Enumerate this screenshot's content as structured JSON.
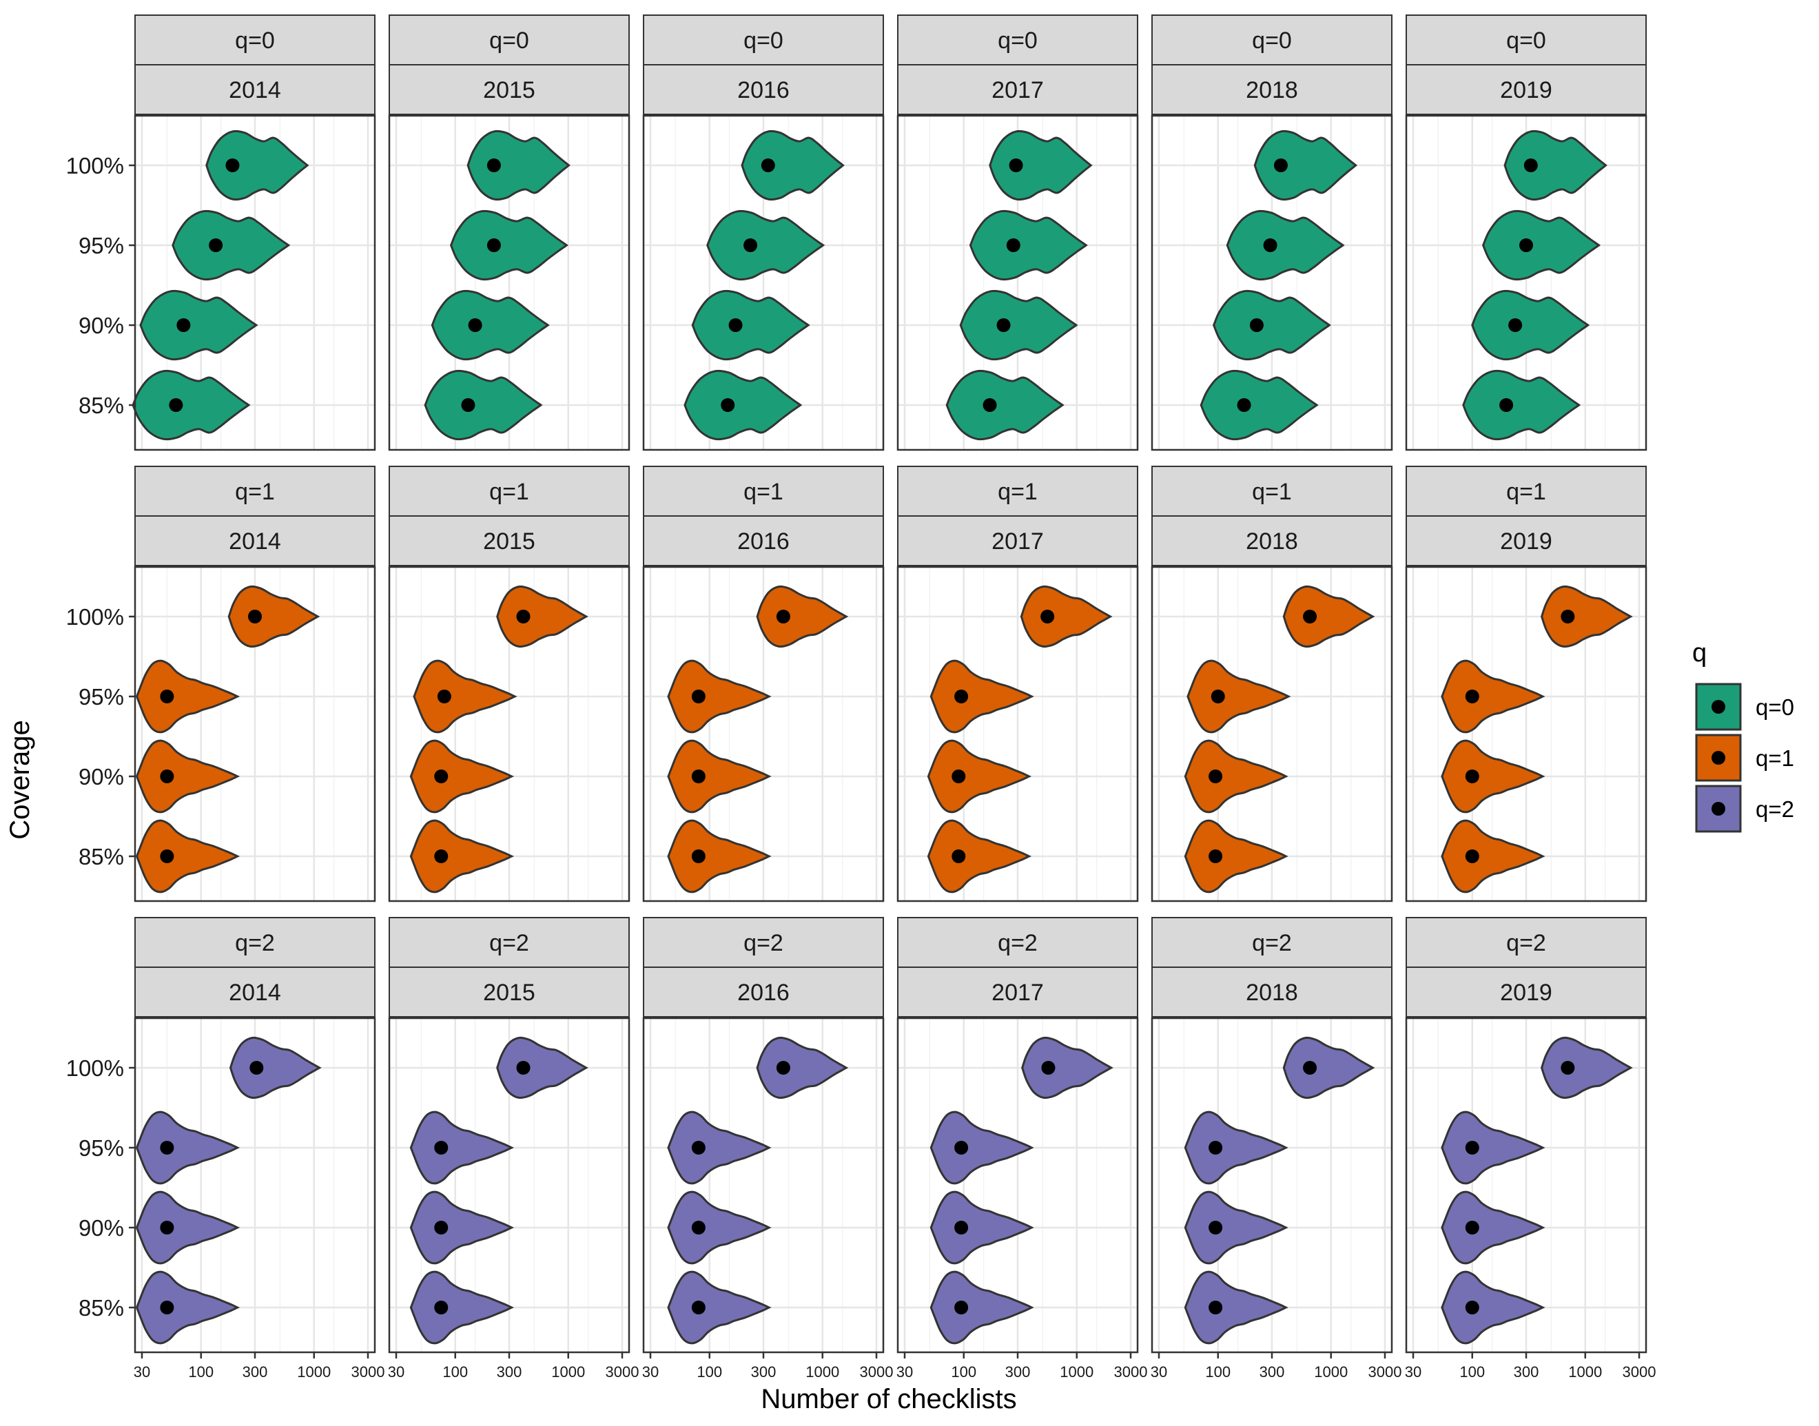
{
  "chart_data": {
    "type": "violin",
    "xlabel": "Number of checklists",
    "ylabel": "Coverage",
    "x_scale": "log10",
    "xlim": [
      30,
      3000
    ],
    "x_ticks": [
      30,
      100,
      300,
      1000,
      3000
    ],
    "x_tick_labels": [
      "30",
      "100",
      "300",
      "1000",
      "3000"
    ],
    "coverage_levels": [
      "85%",
      "90%",
      "95%",
      "100%"
    ],
    "years": [
      "2014",
      "2015",
      "2016",
      "2017",
      "2018",
      "2019"
    ],
    "legend": {
      "title": "q",
      "position": "right",
      "entries": [
        {
          "label": "q=0",
          "color": "#1B9E77"
        },
        {
          "label": "q=1",
          "color": "#D95F02"
        },
        {
          "label": "q=2",
          "color": "#7570B3"
        }
      ]
    },
    "grid": true,
    "panels": [
      {
        "q": "q=0",
        "year": "2014",
        "median": {
          "85%": 60,
          "90%": 70,
          "95%": 135,
          "100%": 190
        }
      },
      {
        "q": "q=0",
        "year": "2015",
        "median": {
          "85%": 130,
          "90%": 150,
          "95%": 220,
          "100%": 220
        }
      },
      {
        "q": "q=0",
        "year": "2016",
        "median": {
          "85%": 145,
          "90%": 170,
          "95%": 230,
          "100%": 330
        }
      },
      {
        "q": "q=0",
        "year": "2017",
        "median": {
          "85%": 170,
          "90%": 225,
          "95%": 275,
          "100%": 290
        }
      },
      {
        "q": "q=0",
        "year": "2018",
        "median": {
          "85%": 170,
          "90%": 220,
          "95%": 290,
          "100%": 360
        }
      },
      {
        "q": "q=0",
        "year": "2019",
        "median": {
          "85%": 200,
          "90%": 240,
          "95%": 300,
          "100%": 330
        }
      },
      {
        "q": "q=1",
        "year": "2014",
        "median": {
          "85%": 50,
          "90%": 50,
          "95%": 50,
          "100%": 300
        }
      },
      {
        "q": "q=1",
        "year": "2015",
        "median": {
          "85%": 75,
          "90%": 75,
          "95%": 80,
          "100%": 400
        }
      },
      {
        "q": "q=1",
        "year": "2016",
        "median": {
          "85%": 80,
          "90%": 80,
          "95%": 80,
          "100%": 450
        }
      },
      {
        "q": "q=1",
        "year": "2017",
        "median": {
          "85%": 90,
          "90%": 90,
          "95%": 95,
          "100%": 550
        }
      },
      {
        "q": "q=1",
        "year": "2018",
        "median": {
          "85%": 95,
          "90%": 95,
          "95%": 100,
          "100%": 650
        }
      },
      {
        "q": "q=1",
        "year": "2019",
        "median": {
          "85%": 100,
          "90%": 100,
          "95%": 100,
          "100%": 700
        }
      },
      {
        "q": "q=2",
        "year": "2014",
        "median": {
          "85%": 50,
          "90%": 50,
          "95%": 50,
          "100%": 310
        }
      },
      {
        "q": "q=2",
        "year": "2015",
        "median": {
          "85%": 75,
          "90%": 75,
          "95%": 75,
          "100%": 400
        }
      },
      {
        "q": "q=2",
        "year": "2016",
        "median": {
          "85%": 80,
          "90%": 80,
          "95%": 80,
          "100%": 450
        }
      },
      {
        "q": "q=2",
        "year": "2017",
        "median": {
          "85%": 95,
          "90%": 95,
          "95%": 95,
          "100%": 560
        }
      },
      {
        "q": "q=2",
        "year": "2018",
        "median": {
          "85%": 95,
          "90%": 95,
          "95%": 95,
          "100%": 650
        }
      },
      {
        "q": "q=2",
        "year": "2019",
        "median": {
          "85%": 100,
          "90%": 100,
          "95%": 100,
          "100%": 700
        }
      }
    ]
  }
}
